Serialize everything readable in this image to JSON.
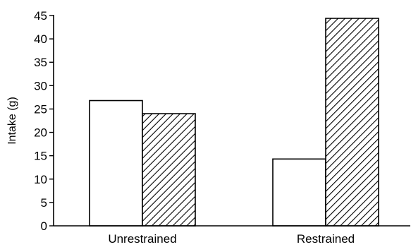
{
  "chart_data": {
    "type": "bar",
    "title": "",
    "xlabel": "",
    "ylabel": "Intake (g)",
    "categories": [
      "Unrestrained",
      "Restrained"
    ],
    "series": [
      {
        "values": [
          26.8,
          14.3
        ],
        "fill": "#ffffff",
        "pattern": "none"
      },
      {
        "values": [
          24.0,
          44.4
        ],
        "fill": "#ffffff",
        "pattern": "diagonal-hatch"
      }
    ],
    "ylim": [
      0,
      45
    ],
    "yticks": [
      0,
      5,
      10,
      15,
      20,
      25,
      30,
      35,
      40,
      45
    ],
    "grid": false,
    "legend": "none"
  }
}
